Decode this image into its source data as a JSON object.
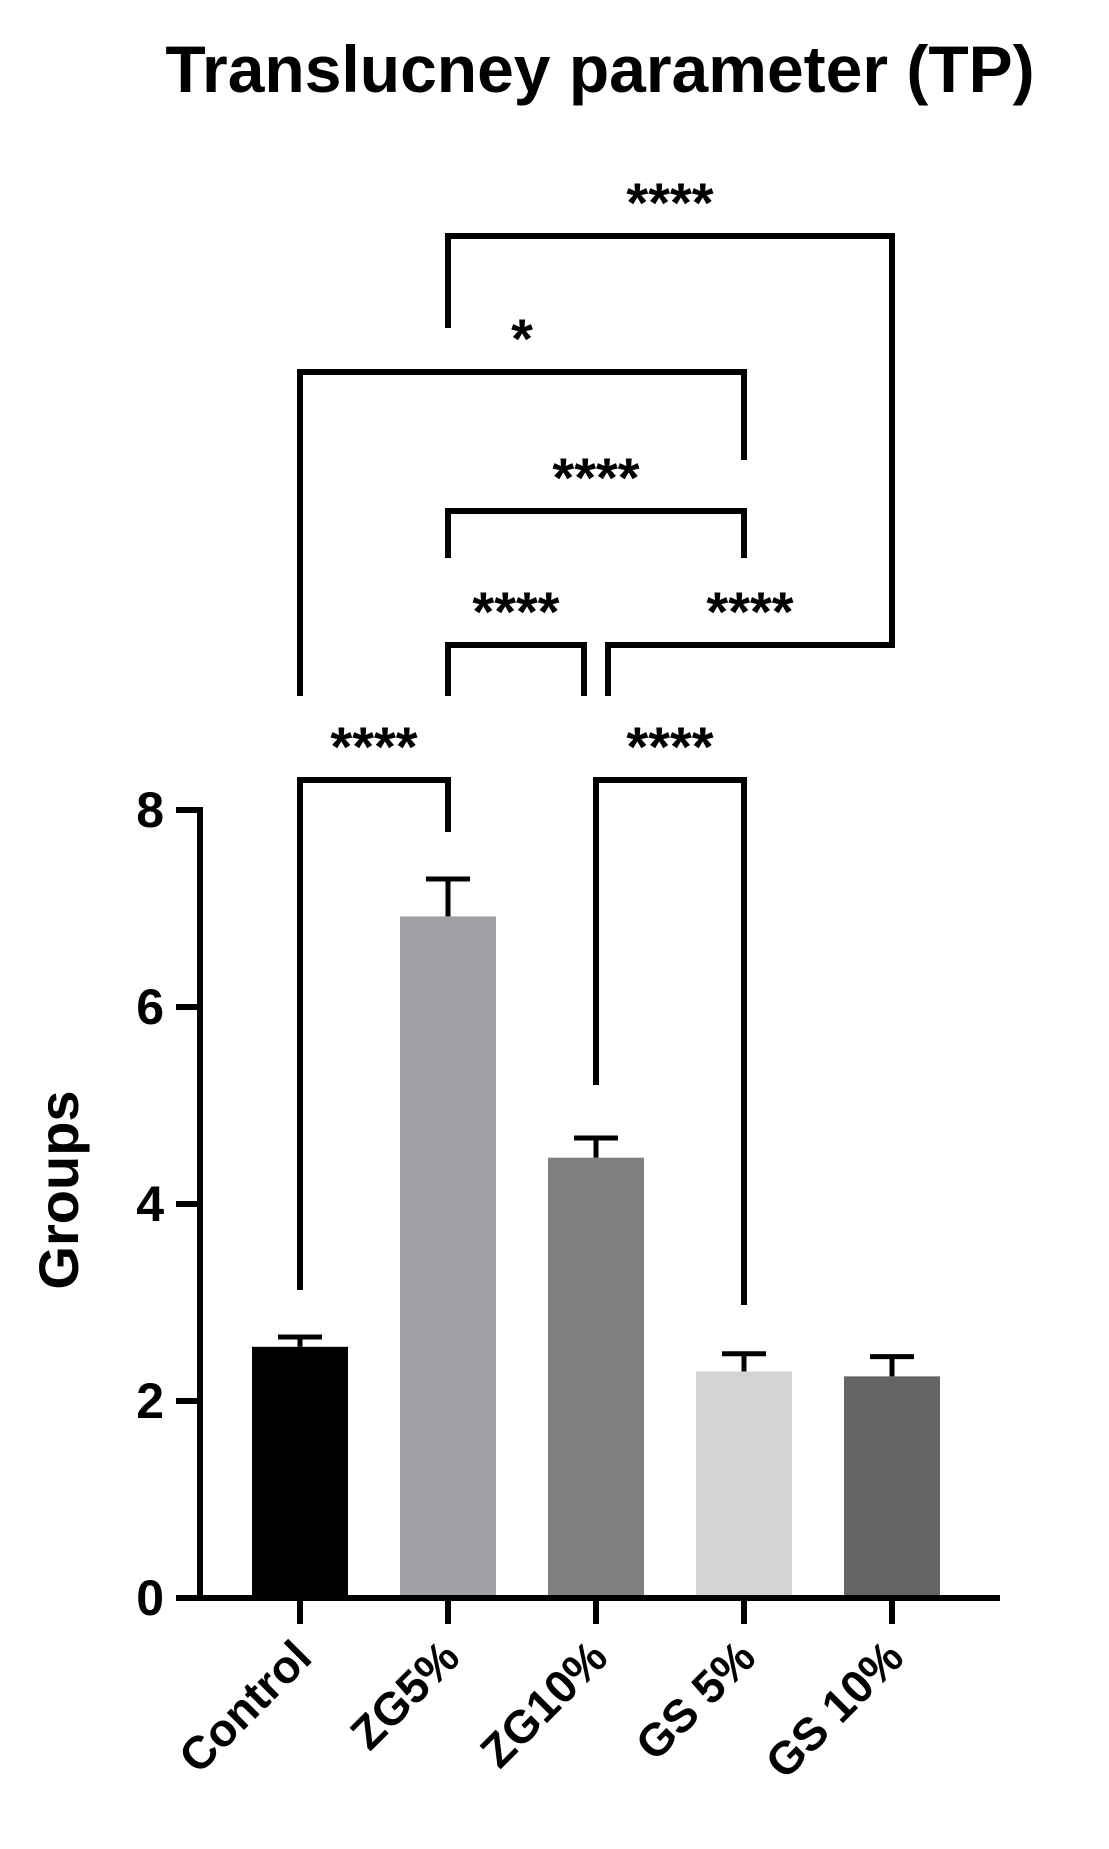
{
  "chart_data": {
    "type": "bar",
    "title": "Translucney parameter (TP)",
    "ylabel": "Groups",
    "xlabel": "",
    "ylim": [
      0,
      8
    ],
    "yticks": [
      0,
      2,
      4,
      6,
      8
    ],
    "categories": [
      "Control",
      "ZG5%",
      "ZG10%",
      "GS 5%",
      "GS 10%"
    ],
    "values": [
      2.55,
      6.92,
      4.47,
      2.3,
      2.25
    ],
    "errors": [
      0.1,
      0.38,
      0.2,
      0.18,
      0.2
    ],
    "colors": [
      "#000000",
      "#a0a1a5",
      "#808080",
      "#d4d4d4",
      "#646464"
    ],
    "significance": [
      {
        "from": "Control",
        "to": "ZG5%",
        "label": "****"
      },
      {
        "from": "ZG10%",
        "to": "GS 5%",
        "label": "****"
      },
      {
        "from": "ZG5%",
        "to": "ZG10%",
        "label": "****"
      },
      {
        "from": "ZG10%",
        "to": "GS 10%",
        "label": "****"
      },
      {
        "from": "ZG5%",
        "to": "GS 5%",
        "label": "****"
      },
      {
        "from": "Control",
        "to": "GS 5%",
        "label": "*"
      },
      {
        "from": "ZG5%",
        "to": "GS 10%",
        "label": "****"
      }
    ],
    "grid": false,
    "legend": "none"
  }
}
